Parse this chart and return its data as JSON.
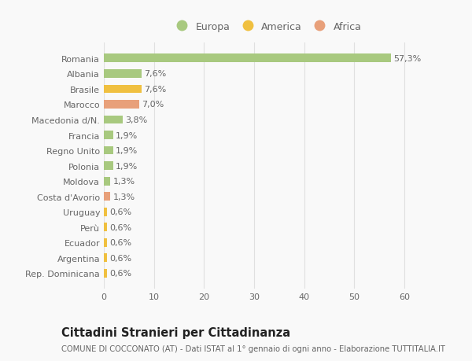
{
  "categories": [
    "Romania",
    "Albania",
    "Brasile",
    "Marocco",
    "Macedonia d/N.",
    "Francia",
    "Regno Unito",
    "Polonia",
    "Moldova",
    "Costa d'Avorio",
    "Uruguay",
    "Perù",
    "Ecuador",
    "Argentina",
    "Rep. Dominicana"
  ],
  "values": [
    57.3,
    7.6,
    7.6,
    7.0,
    3.8,
    1.9,
    1.9,
    1.9,
    1.3,
    1.3,
    0.6,
    0.6,
    0.6,
    0.6,
    0.6
  ],
  "labels": [
    "57,3%",
    "7,6%",
    "7,6%",
    "7,0%",
    "3,8%",
    "1,9%",
    "1,9%",
    "1,9%",
    "1,3%",
    "1,3%",
    "0,6%",
    "0,6%",
    "0,6%",
    "0,6%",
    "0,6%"
  ],
  "continent": [
    "Europa",
    "Europa",
    "America",
    "Africa",
    "Europa",
    "Europa",
    "Europa",
    "Europa",
    "Europa",
    "Africa",
    "America",
    "America",
    "America",
    "America",
    "America"
  ],
  "colors": {
    "Europa": "#a8c97f",
    "America": "#f0c040",
    "Africa": "#e8a07a"
  },
  "legend_labels": [
    "Europa",
    "America",
    "Africa"
  ],
  "legend_colors": [
    "#a8c97f",
    "#f0c040",
    "#e8a07a"
  ],
  "title": "Cittadini Stranieri per Cittadinanza",
  "subtitle": "COMUNE DI COCCONATO (AT) - Dati ISTAT al 1° gennaio di ogni anno - Elaborazione TUTTITALIA.IT",
  "xlim": [
    0,
    65
  ],
  "xticks": [
    0,
    10,
    20,
    30,
    40,
    50,
    60
  ],
  "background_color": "#f9f9f9",
  "grid_color": "#e0e0e0",
  "bar_height": 0.55,
  "label_fontsize": 8,
  "tick_fontsize": 8,
  "title_fontsize": 10.5,
  "subtitle_fontsize": 7.2
}
